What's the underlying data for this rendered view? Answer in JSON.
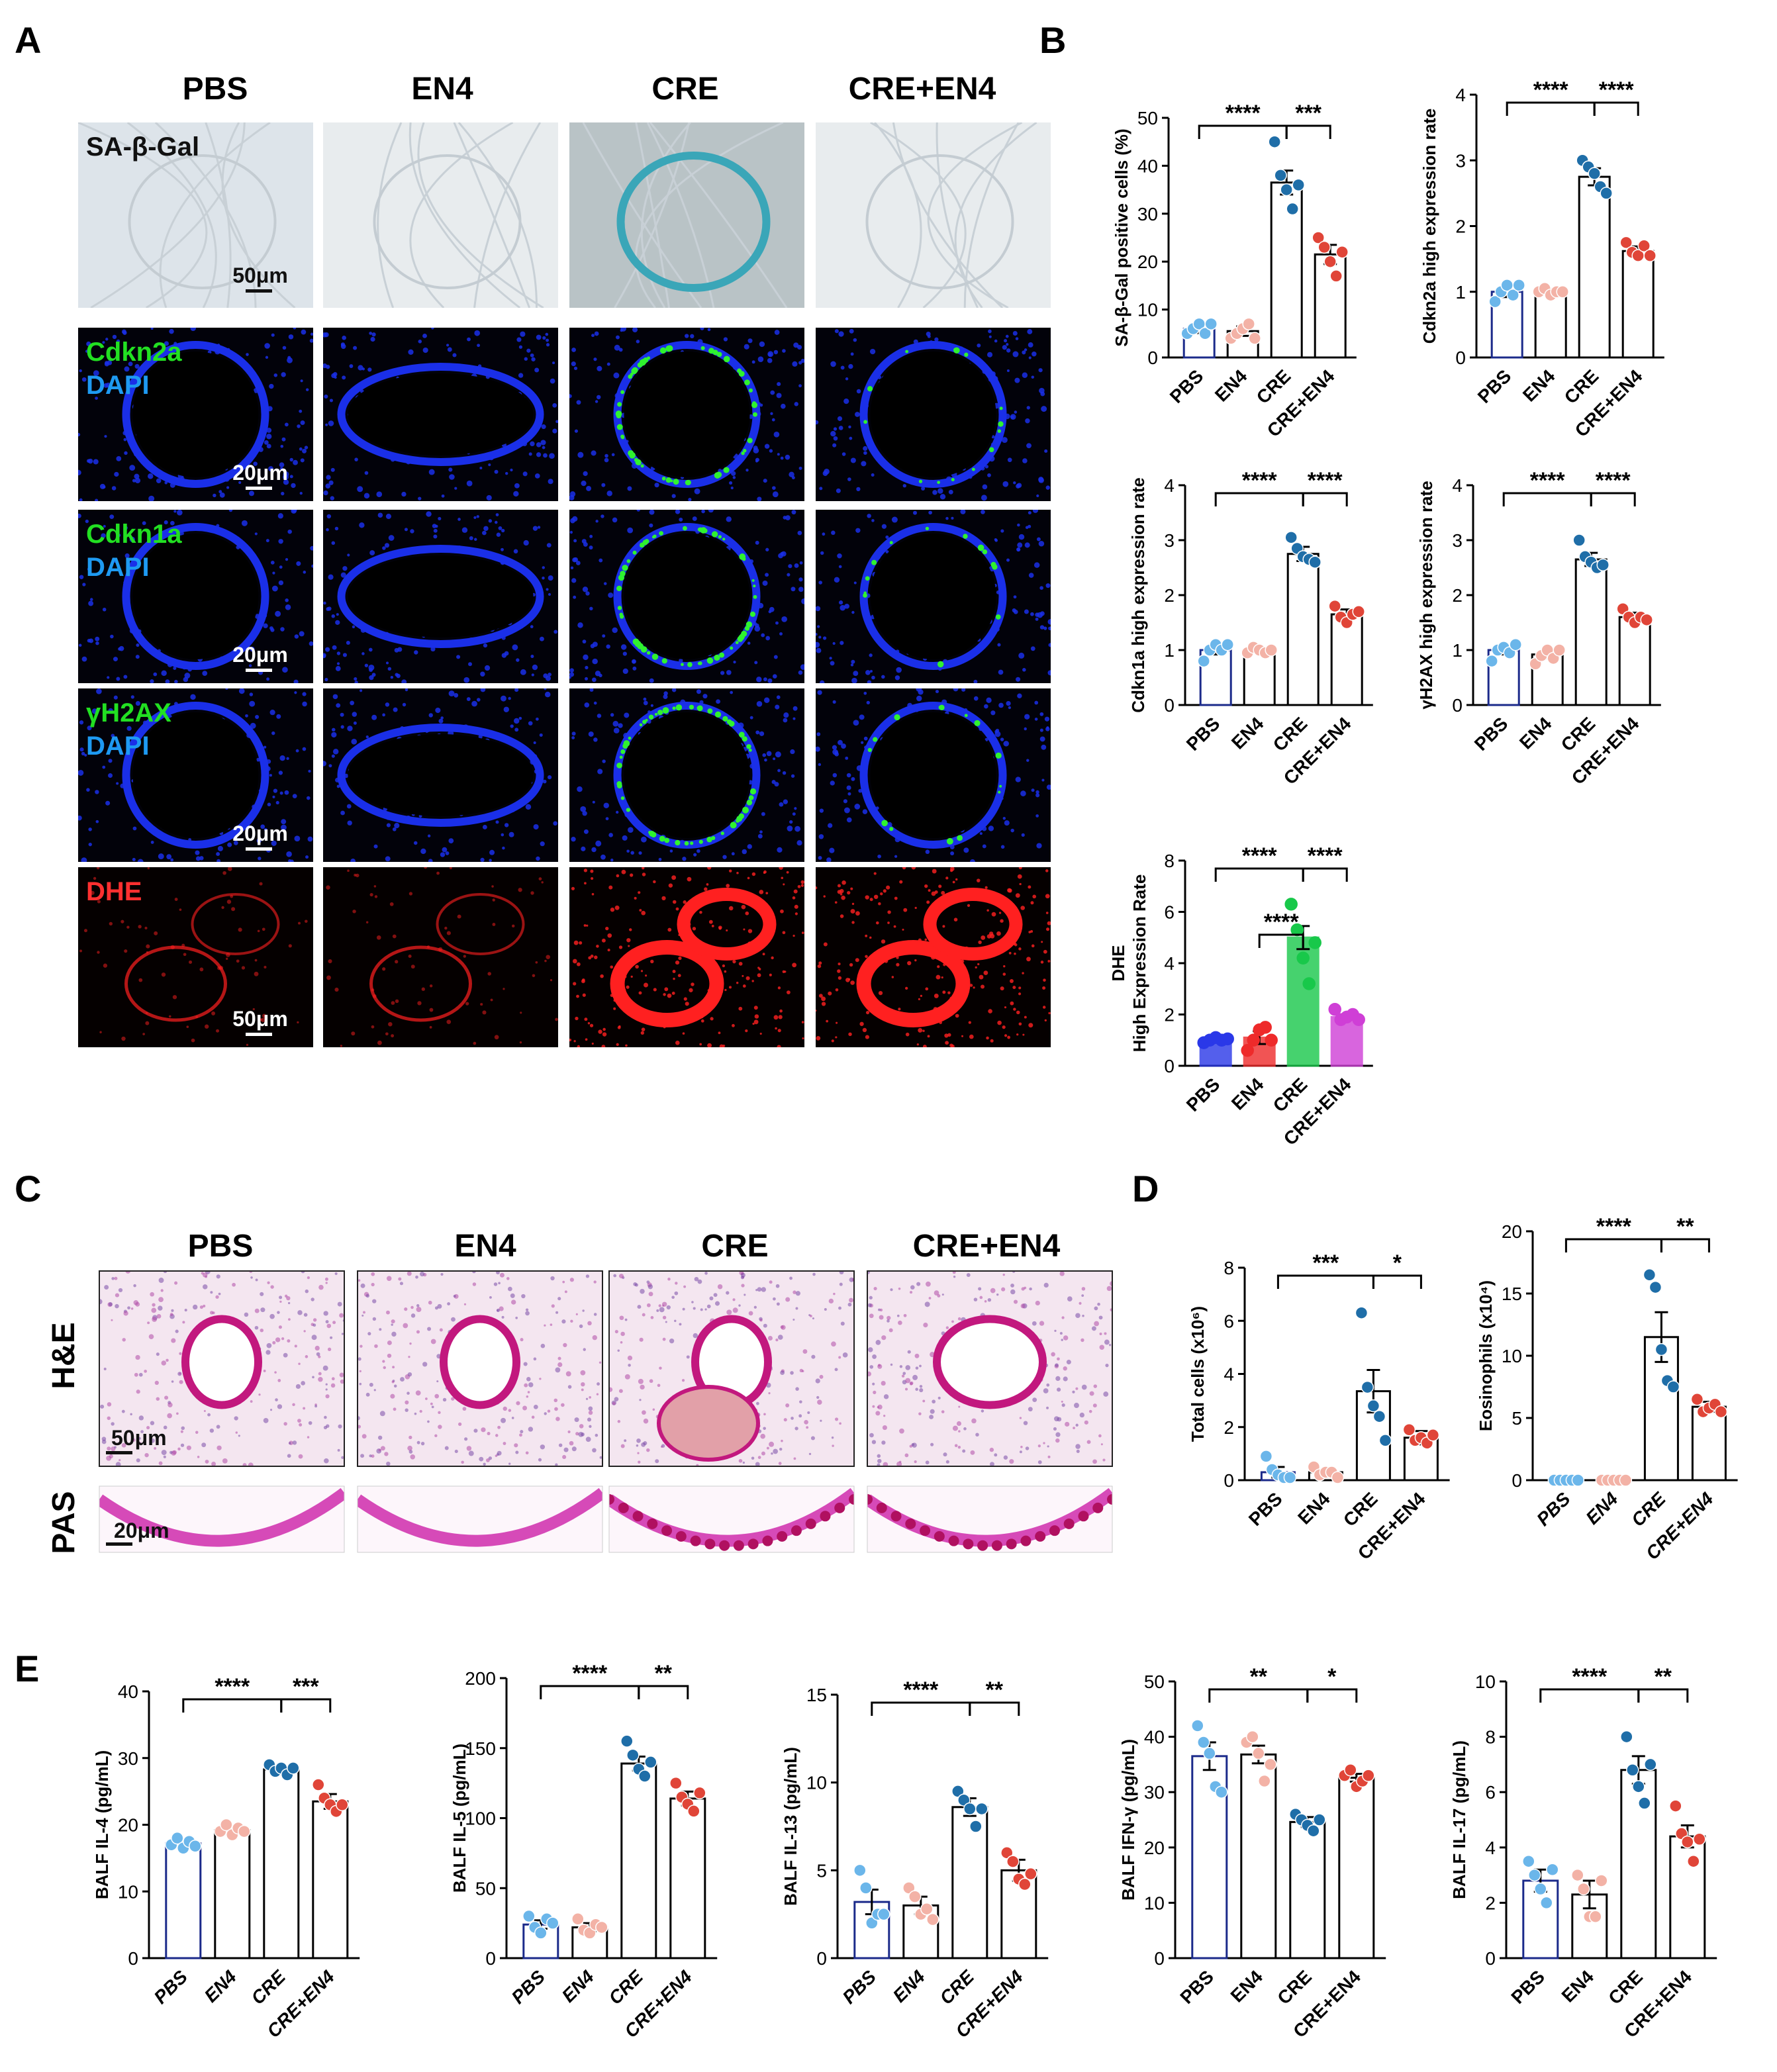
{
  "panels": {
    "A": {
      "letter": "A",
      "columns": [
        "PBS",
        "EN4",
        "CRE",
        "CRE+EN4"
      ],
      "rows": [
        {
          "labels": [
            "SA-β-Gal"
          ],
          "scale": "50μm",
          "kind": "sagal"
        },
        {
          "labels": [
            "Cdkn2a",
            "DAPI"
          ],
          "scale": "20μm",
          "kind": "fluor",
          "sig": [
            0,
            0,
            2,
            1
          ]
        },
        {
          "labels": [
            "Cdkn1a",
            "DAPI"
          ],
          "scale": "20μm",
          "kind": "fluor",
          "sig": [
            0,
            0,
            2,
            1
          ]
        },
        {
          "labels": [
            "γH2AX",
            "DAPI"
          ],
          "scale": "20μm",
          "kind": "fluor",
          "sig": [
            0,
            0,
            2,
            1
          ]
        },
        {
          "labels": [
            "DHE"
          ],
          "scale": "50μm",
          "kind": "dhe"
        }
      ]
    },
    "B": {
      "letter": "B"
    },
    "C": {
      "letter": "C",
      "columns": [
        "PBS",
        "EN4",
        "CRE",
        "CRE+EN4"
      ],
      "rows": [
        "H&E",
        "PAS"
      ],
      "scales": [
        "50μm",
        "20μm"
      ]
    },
    "D": {
      "letter": "D"
    },
    "E": {
      "letter": "E"
    }
  },
  "colors": {
    "blue_fluor": "#1a2fe8",
    "green_fluor": "#2ff22f",
    "red_fluor": "#ff2020",
    "sagal_blue": "#3aa6b8"
  },
  "chart_data": [
    {
      "id": "B1",
      "type": "bar",
      "ylabel": "SA-β-Gal positive cells (%)",
      "ylim": [
        0,
        50
      ],
      "yticks": [
        0,
        10,
        20,
        30,
        40,
        50
      ],
      "categories": [
        "PBS",
        "EN4",
        "CRE",
        "CRE+EN4"
      ],
      "values": [
        6.0,
        5.5,
        36.5,
        21.5
      ],
      "errors": [
        0.9,
        1.0,
        2.5,
        2.0
      ],
      "points": [
        [
          5,
          6,
          7,
          5,
          7
        ],
        [
          4,
          5,
          6,
          7,
          4
        ],
        [
          45,
          38,
          35,
          31,
          36
        ],
        [
          25,
          23,
          20,
          17,
          22
        ]
      ],
      "significance": [
        {
          "from": 0,
          "to": 2,
          "label": "****"
        },
        {
          "from": 2,
          "to": 3,
          "label": "***"
        }
      ]
    },
    {
      "id": "B2",
      "type": "bar",
      "ylabel": "Cdkn2a high expression rate",
      "ylim": [
        0,
        4
      ],
      "yticks": [
        0,
        1,
        2,
        3,
        4
      ],
      "categories": [
        "PBS",
        "EN4",
        "CRE",
        "CRE+EN4"
      ],
      "values": [
        1.0,
        1.0,
        2.75,
        1.62
      ],
      "errors": [
        0.08,
        0.04,
        0.13,
        0.07
      ],
      "points": [
        [
          0.85,
          1.0,
          1.1,
          0.95,
          1.1
        ],
        [
          1.0,
          1.05,
          0.95,
          1.0,
          1.0
        ],
        [
          3.0,
          2.9,
          2.8,
          2.6,
          2.5
        ],
        [
          1.75,
          1.6,
          1.55,
          1.7,
          1.55
        ]
      ],
      "significance": [
        {
          "from": 0,
          "to": 2,
          "label": "****"
        },
        {
          "from": 2,
          "to": 3,
          "label": "****"
        }
      ]
    },
    {
      "id": "B3",
      "type": "bar",
      "ylabel": "Cdkn1a high expression rate",
      "ylim": [
        0,
        4
      ],
      "yticks": [
        0,
        1,
        2,
        3,
        4
      ],
      "categories": [
        "PBS",
        "EN4",
        "CRE",
        "CRE+EN4"
      ],
      "values": [
        1.0,
        1.0,
        2.75,
        1.65
      ],
      "errors": [
        0.08,
        0.04,
        0.13,
        0.09
      ],
      "points": [
        [
          0.8,
          1.0,
          1.1,
          1.0,
          1.1
        ],
        [
          0.95,
          1.05,
          1.0,
          0.95,
          1.0
        ],
        [
          3.05,
          2.85,
          2.7,
          2.65,
          2.6
        ],
        [
          1.8,
          1.6,
          1.5,
          1.65,
          1.7
        ]
      ],
      "significance": [
        {
          "from": 0,
          "to": 2,
          "label": "****"
        },
        {
          "from": 2,
          "to": 3,
          "label": "****"
        }
      ]
    },
    {
      "id": "B4",
      "type": "bar",
      "ylabel": "γH2AX high expression rate",
      "ylim": [
        0,
        4
      ],
      "yticks": [
        0,
        1,
        2,
        3,
        4
      ],
      "categories": [
        "PBS",
        "EN4",
        "CRE",
        "CRE+EN4"
      ],
      "values": [
        1.0,
        0.92,
        2.65,
        1.6
      ],
      "errors": [
        0.08,
        0.07,
        0.12,
        0.08
      ],
      "points": [
        [
          0.8,
          1.0,
          1.05,
          0.95,
          1.1
        ],
        [
          0.75,
          0.9,
          1.0,
          0.85,
          1.0
        ],
        [
          3.0,
          2.7,
          2.6,
          2.5,
          2.55
        ],
        [
          1.75,
          1.6,
          1.5,
          1.6,
          1.55
        ]
      ],
      "significance": [
        {
          "from": 0,
          "to": 2,
          "label": "****"
        },
        {
          "from": 2,
          "to": 3,
          "label": "****"
        }
      ]
    },
    {
      "id": "B5",
      "type": "bar",
      "ylabel": [
        "DHE",
        "High Expression Rate"
      ],
      "ylim": [
        0,
        8
      ],
      "yticks": [
        0,
        2,
        4,
        6,
        8
      ],
      "categories": [
        "PBS",
        "EN4",
        "CRE",
        "CRE+EN4"
      ],
      "values": [
        1.0,
        1.1,
        5.0,
        1.9
      ],
      "errors": [
        0.06,
        0.25,
        0.45,
        0.1
      ],
      "points": [
        [
          0.9,
          1.0,
          1.1,
          1.0,
          1.05
        ],
        [
          0.6,
          1.0,
          1.4,
          1.5,
          1.0
        ],
        [
          6.3,
          5.3,
          4.2,
          3.2,
          4.8
        ],
        [
          2.2,
          1.8,
          1.9,
          2.0,
          1.8
        ]
      ],
      "colors": [
        "#2a38e8",
        "#ee2a2a",
        "#18c84a",
        "#cf3fd6"
      ],
      "filled": true,
      "significance": [
        {
          "from": 0,
          "to": 2,
          "label": "****"
        },
        {
          "from": 1,
          "to": 2,
          "label": "****"
        },
        {
          "from": 2,
          "to": 3,
          "label": "****"
        }
      ]
    },
    {
      "id": "D1",
      "type": "bar",
      "ylabel": "Total cells (x10⁶)",
      "ylim": [
        0,
        8
      ],
      "yticks": [
        0,
        2,
        4,
        6,
        8
      ],
      "categories": [
        "PBS",
        "EN4",
        "CRE",
        "CRE+EN4"
      ],
      "values": [
        0.3,
        0.3,
        3.35,
        1.6
      ],
      "errors": [
        0.2,
        0.1,
        0.8,
        0.25
      ],
      "points": [
        [
          0.9,
          0.4,
          0.2,
          0.1,
          0.1
        ],
        [
          0.5,
          0.2,
          0.3,
          0.3,
          0.1
        ],
        [
          6.3,
          3.5,
          2.8,
          2.4,
          1.5
        ],
        [
          1.9,
          1.5,
          1.6,
          1.4,
          1.7
        ]
      ],
      "significance": [
        {
          "from": 0,
          "to": 2,
          "label": "***"
        },
        {
          "from": 2,
          "to": 3,
          "label": "*"
        }
      ]
    },
    {
      "id": "D2",
      "type": "bar",
      "ylabel": "Eosinophils (x10⁴)",
      "ylim": [
        0,
        20
      ],
      "yticks": [
        0,
        5,
        10,
        15,
        20
      ],
      "categories": [
        "PBS",
        "EN4",
        "CRE",
        "CRE+EN4"
      ],
      "values": [
        0,
        0,
        11.5,
        5.9
      ],
      "errors": [
        0,
        0,
        2.0,
        0.4
      ],
      "points": [
        [
          0,
          0,
          0,
          0,
          0
        ],
        [
          0,
          0,
          0,
          0,
          0
        ],
        [
          16.5,
          15.5,
          10.5,
          8.0,
          7.5
        ],
        [
          6.5,
          5.5,
          5.8,
          6.1,
          5.5
        ]
      ],
      "significance": [
        {
          "from": 0,
          "to": 2,
          "label": "****"
        },
        {
          "from": 2,
          "to": 3,
          "label": "**"
        }
      ],
      "italic_ticks": true
    },
    {
      "id": "E1",
      "type": "bar",
      "ylabel": "BALF IL-4 (pg/mL)",
      "ylim": [
        0,
        40
      ],
      "yticks": [
        0,
        10,
        20,
        30,
        40
      ],
      "categories": [
        "PBS",
        "EN4",
        "CRE",
        "CRE+EN4"
      ],
      "values": [
        17.2,
        19.2,
        28.3,
        23.5
      ],
      "errors": [
        0.5,
        0.6,
        0.4,
        1.1
      ],
      "points": [
        [
          17,
          18,
          16.5,
          17.5,
          16.8
        ],
        [
          19,
          20,
          18.5,
          19.5,
          19
        ],
        [
          29,
          28,
          28.5,
          27.5,
          28.5
        ],
        [
          26,
          24,
          23,
          22,
          23
        ]
      ],
      "significance": [
        {
          "from": 0,
          "to": 2,
          "label": "****"
        },
        {
          "from": 2,
          "to": 3,
          "label": "***"
        }
      ],
      "italic_ticks": true
    },
    {
      "id": "E2",
      "type": "bar",
      "ylabel": "BALF IL-5 (pg/mL)",
      "ylim": [
        0,
        200
      ],
      "yticks": [
        0,
        50,
        100,
        150,
        200
      ],
      "categories": [
        "PBS",
        "EN4",
        "CRE",
        "CRE+EN4"
      ],
      "values": [
        24,
        22,
        139,
        114
      ],
      "errors": [
        3,
        3,
        5,
        5
      ],
      "points": [
        [
          30,
          22,
          18,
          28,
          25
        ],
        [
          28,
          20,
          18,
          24,
          22
        ],
        [
          155,
          145,
          135,
          130,
          140
        ],
        [
          125,
          115,
          110,
          105,
          118
        ]
      ],
      "significance": [
        {
          "from": 0,
          "to": 2,
          "label": "****"
        },
        {
          "from": 2,
          "to": 3,
          "label": "**"
        }
      ],
      "italic_ticks": true
    },
    {
      "id": "E3",
      "type": "bar",
      "ylabel": "BALF IL-13 (pg/mL)",
      "ylim": [
        0,
        15
      ],
      "yticks": [
        0,
        5,
        10,
        15
      ],
      "categories": [
        "PBS",
        "EN4",
        "CRE",
        "CRE+EN4"
      ],
      "values": [
        3.2,
        3.0,
        8.6,
        5.0
      ],
      "errors": [
        0.7,
        0.5,
        0.5,
        0.6
      ],
      "points": [
        [
          5,
          4,
          2,
          2.5,
          2.5
        ],
        [
          4,
          3.5,
          2.5,
          2.8,
          2.2
        ],
        [
          9.5,
          9,
          8.5,
          7.5,
          8.5
        ],
        [
          6,
          5.5,
          4.5,
          4.2,
          4.8
        ]
      ],
      "significance": [
        {
          "from": 0,
          "to": 2,
          "label": "****"
        },
        {
          "from": 2,
          "to": 3,
          "label": "**"
        }
      ],
      "italic_ticks": true
    },
    {
      "id": "E4",
      "type": "bar",
      "ylabel": "BALF IFN-γ (pg/mL)",
      "ylim": [
        0,
        50
      ],
      "yticks": [
        0,
        10,
        20,
        30,
        40,
        50
      ],
      "categories": [
        "PBS",
        "EN4",
        "CRE",
        "CRE+EN4"
      ],
      "values": [
        36.5,
        36.8,
        24.6,
        32.6
      ],
      "errors": [
        2.5,
        1.6,
        0.9,
        0.7
      ],
      "points": [
        [
          42,
          39,
          37,
          31,
          30
        ],
        [
          39,
          40,
          37,
          32,
          35
        ],
        [
          26,
          25,
          24,
          23,
          25
        ],
        [
          33,
          34,
          31,
          32,
          33
        ]
      ],
      "significance": [
        {
          "from": 0,
          "to": 2,
          "label": "**"
        },
        {
          "from": 2,
          "to": 3,
          "label": "*"
        }
      ]
    },
    {
      "id": "E5",
      "type": "bar",
      "ylabel": "BALF IL-17 (pg/mL)",
      "ylim": [
        0,
        10
      ],
      "yticks": [
        0,
        2,
        4,
        6,
        8,
        10
      ],
      "categories": [
        "PBS",
        "EN4",
        "CRE",
        "CRE+EN4"
      ],
      "values": [
        2.8,
        2.3,
        6.8,
        4.4
      ],
      "errors": [
        0.4,
        0.5,
        0.5,
        0.4
      ],
      "points": [
        [
          3.5,
          3.0,
          2.5,
          2.0,
          3.2
        ],
        [
          3.0,
          2.5,
          1.5,
          1.5,
          2.8
        ],
        [
          8.0,
          6.8,
          6.2,
          5.6,
          7.0
        ],
        [
          5.5,
          4.5,
          4.2,
          3.5,
          4.3
        ]
      ],
      "significance": [
        {
          "from": 0,
          "to": 2,
          "label": "****"
        },
        {
          "from": 2,
          "to": 3,
          "label": "**"
        }
      ]
    }
  ]
}
